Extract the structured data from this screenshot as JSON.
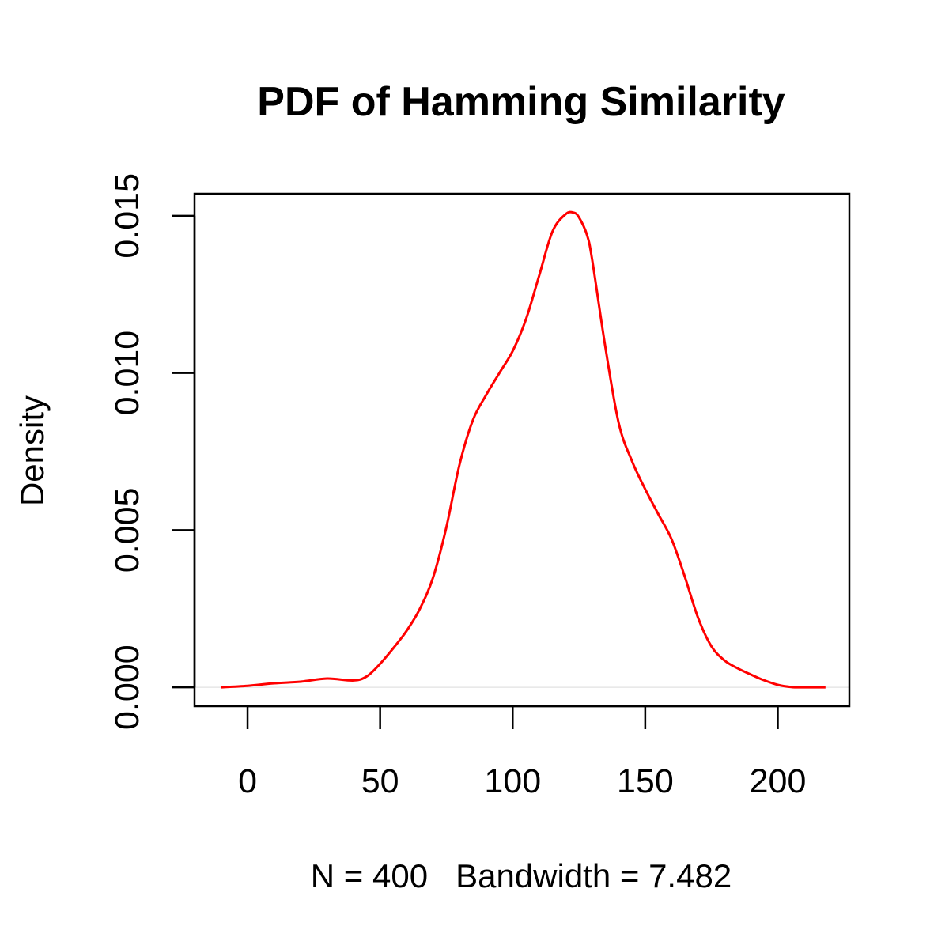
{
  "chart_data": {
    "type": "line",
    "title": "PDF of Hamming Similarity",
    "xlabel": "N = 400   Bandwidth = 7.482",
    "ylabel": "Density",
    "xlim": [
      -20,
      227
    ],
    "ylim": [
      -0.0006,
      0.0157
    ],
    "x_ticks": [
      0,
      50,
      100,
      150,
      200
    ],
    "x_tick_labels": [
      "0",
      "50",
      "100",
      "150",
      "200"
    ],
    "y_ticks": [
      0.0,
      0.005,
      0.01,
      0.015
    ],
    "y_tick_labels": [
      "0.000",
      "0.005",
      "0.010",
      "0.015"
    ],
    "grid": false,
    "baseline": 0,
    "colors": {
      "line": "#ff0000",
      "baseline": "#e6e6e6",
      "axis": "#000000"
    },
    "series": [
      {
        "x": [
          -10,
          0,
          10,
          20,
          30,
          40,
          45,
          50,
          55,
          60,
          65,
          70,
          75,
          80,
          85,
          90,
          95,
          100,
          105,
          110,
          115,
          120,
          123,
          125,
          128,
          130,
          135,
          140,
          145,
          150,
          155,
          160,
          165,
          170,
          175,
          180,
          185,
          190,
          195,
          200,
          205,
          210,
          218
        ],
        "y": [
          0.0,
          5e-05,
          0.00013,
          0.00018,
          0.00028,
          0.00022,
          0.00035,
          0.00075,
          0.00125,
          0.0018,
          0.0025,
          0.0035,
          0.0051,
          0.0071,
          0.0085,
          0.0093,
          0.01,
          0.0107,
          0.0117,
          0.0131,
          0.0145,
          0.01505,
          0.0151,
          0.01495,
          0.0144,
          0.0136,
          0.0108,
          0.0084,
          0.0072,
          0.0063,
          0.0055,
          0.0047,
          0.0035,
          0.0022,
          0.0013,
          0.00085,
          0.0006,
          0.0004,
          0.00022,
          8e-05,
          1e-05,
          0.0,
          0.0
        ]
      }
    ]
  }
}
